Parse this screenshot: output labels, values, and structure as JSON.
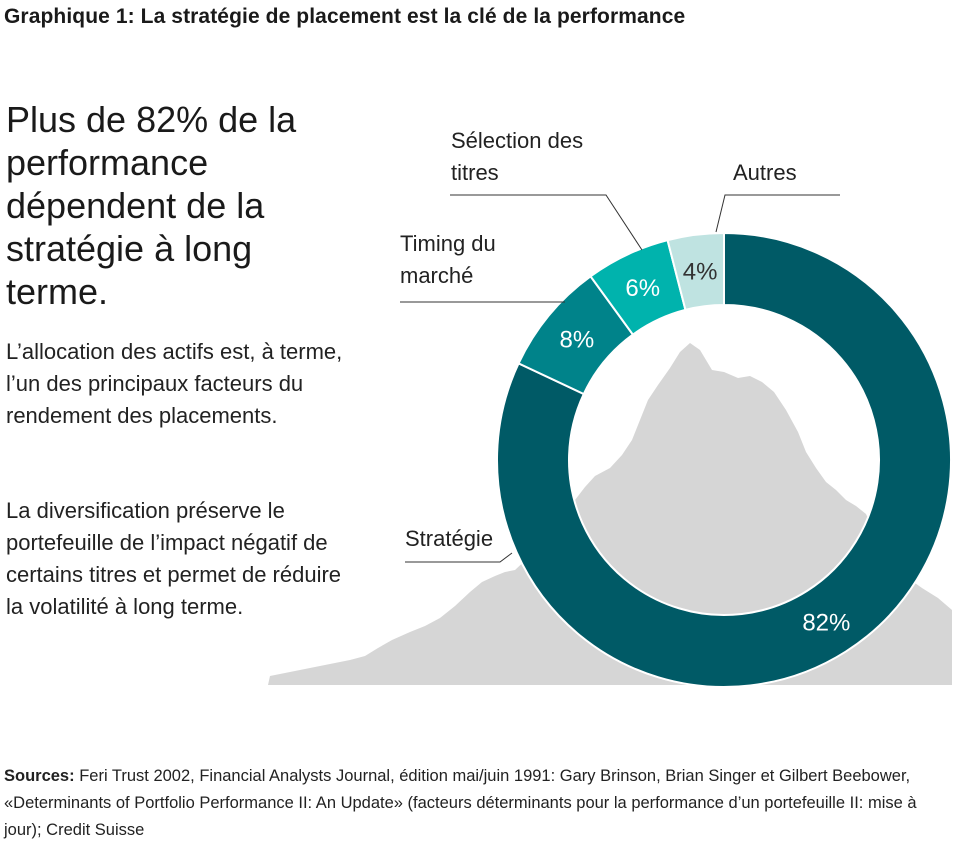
{
  "title": "Graphique 1: La stratégie de placement est la clé de la performance",
  "headline": "Plus de 82% de la performance dépendent de la stratégie à long terme.",
  "paragraph1": "L’allocation des actifs est, à terme, l’un des principaux facteurs du rendement des placements.",
  "paragraph2": "La diversification préserve le portefeuille de l’impact négatif de certains titres et permet de réduire la volatilité à long terme.",
  "sources": {
    "label": "Sources:",
    "text": " Feri Trust 2002, Financial Analysts Journal, édition mai/juin 1991: Gary Brinson, Brian Singer et Gilbert Beebower, «Determinants of Portfolio Performance II: An Update» (facteurs déterminants pour la performance d’un portefeuille II: mise à jour); Credit Suisse"
  },
  "chart_data": {
    "type": "pie",
    "variant": "donut",
    "categories": [
      "Stratégie",
      "Timing du marché",
      "Sélection des titres",
      "Autres"
    ],
    "label_lines": [
      [
        "Stratégie"
      ],
      [
        "Timing du",
        "marché"
      ],
      [
        "Sélection des",
        "titres"
      ],
      [
        "Autres"
      ]
    ],
    "values": [
      82,
      8,
      6,
      4
    ],
    "value_labels": [
      "82%",
      "8%",
      "6%",
      "4%"
    ],
    "colors": [
      "#005a66",
      "#00838a",
      "#00b3ad",
      "#bfe3e1"
    ],
    "value_label_colors": [
      "#ffffff",
      "#ffffff",
      "#ffffff",
      "#333333"
    ],
    "legend": "none",
    "background_shape": "mountain-silhouette",
    "background_color": "#d6d6d6"
  }
}
